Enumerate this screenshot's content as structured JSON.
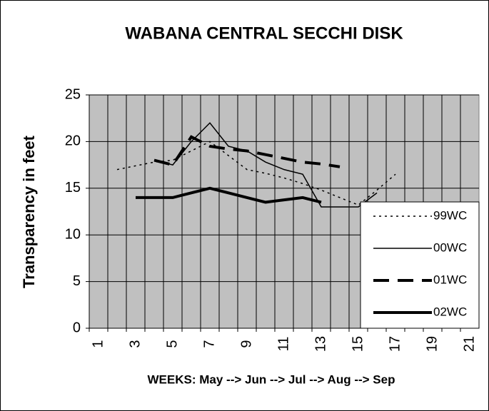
{
  "chart_data": {
    "type": "line",
    "title": "WABANA CENTRAL SECCHI DISK",
    "x_label": "WEEKS:  May --> Jun --> Jul --> Aug --> Sep",
    "y_label": "Transparency in feet",
    "categories": [
      "1",
      null,
      "3",
      null,
      "5",
      null,
      "7",
      null,
      "9",
      null,
      "11",
      null,
      "13",
      null,
      "15",
      null,
      "17",
      null,
      "19",
      null,
      "21"
    ],
    "ylim": [
      0,
      25
    ],
    "yticks": [
      0,
      5,
      10,
      15,
      20,
      25
    ],
    "grid": true,
    "legend": "lower right",
    "series": [
      {
        "name": "99WC",
        "color": "#000000",
        "style": "dotted",
        "width": 1.5,
        "values": [
          null,
          17,
          17.4,
          17.8,
          18,
          19,
          20,
          18.5,
          17,
          16.6,
          16.1,
          15.5,
          14.8,
          14,
          13.2,
          14.8,
          16.5,
          null,
          null,
          null,
          null
        ]
      },
      {
        "name": "00WC",
        "color": "#000000",
        "style": "solid",
        "width": 1.5,
        "values": [
          null,
          null,
          null,
          18,
          17.5,
          20,
          22,
          19.5,
          19,
          17.8,
          17,
          16.5,
          13,
          13,
          13,
          14.5,
          null,
          null,
          null,
          null,
          null
        ]
      },
      {
        "name": "01WC",
        "color": "#000000",
        "style": "dashed",
        "width": 4,
        "values": [
          null,
          null,
          null,
          18,
          17.5,
          20.5,
          19.5,
          19.2,
          19,
          18.6,
          18.2,
          17.8,
          17.6,
          17.3,
          null,
          null,
          null,
          null,
          null,
          null,
          null
        ]
      },
      {
        "name": "02WC",
        "color": "#000000",
        "style": "solid",
        "width": 4,
        "values": [
          null,
          null,
          14,
          14,
          14,
          14.5,
          15,
          14.5,
          14,
          13.5,
          13.75,
          14,
          13.5,
          null,
          null,
          null,
          null,
          null,
          null,
          null,
          null
        ]
      }
    ]
  }
}
